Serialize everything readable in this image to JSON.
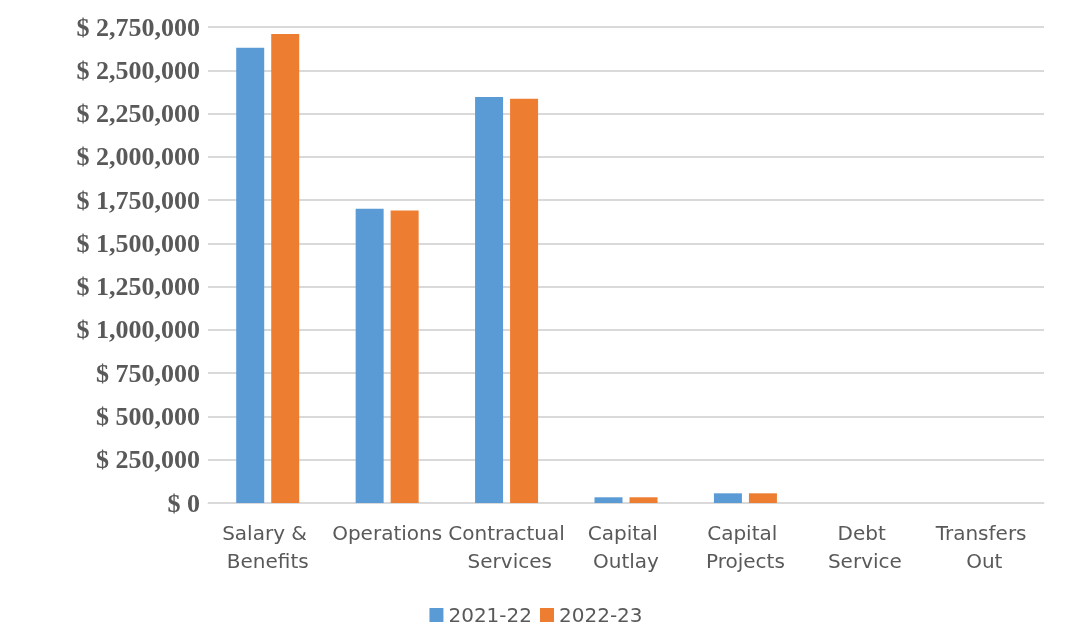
{
  "chart_data": {
    "type": "bar",
    "categories": [
      "Salary & Benefits",
      "Operations",
      "Contractual Services",
      "Capital Outlay",
      "Capital Projects",
      "Debt Service",
      "Transfers Out"
    ],
    "series": [
      {
        "name": "2021-22",
        "color": "#5b9bd5",
        "values": [
          2630000,
          1700000,
          2345000,
          33000,
          56000,
          0,
          0
        ]
      },
      {
        "name": "2022-23",
        "color": "#ed7d31",
        "values": [
          2710000,
          1690000,
          2335000,
          33000,
          56000,
          0,
          0
        ]
      }
    ],
    "ylim": [
      0,
      2750000
    ],
    "yticks": [
      {
        "value": 0,
        "label": "$ 0"
      },
      {
        "value": 250000,
        "label": "$ 250,000"
      },
      {
        "value": 500000,
        "label": "$ 500,000"
      },
      {
        "value": 750000,
        "label": "$ 750,000"
      },
      {
        "value": 1000000,
        "label": "$ 1,000,000"
      },
      {
        "value": 1250000,
        "label": "$ 1,250,000"
      },
      {
        "value": 1500000,
        "label": "$ 1,500,000"
      },
      {
        "value": 1750000,
        "label": "$ 1,750,000"
      },
      {
        "value": 2000000,
        "label": "$ 2,000,000"
      },
      {
        "value": 2250000,
        "label": "$ 2,250,000"
      },
      {
        "value": 2500000,
        "label": "$ 2,500,000"
      },
      {
        "value": 2750000,
        "label": "$ 2,750,000"
      }
    ],
    "grid": "y",
    "legend": "bottom"
  }
}
